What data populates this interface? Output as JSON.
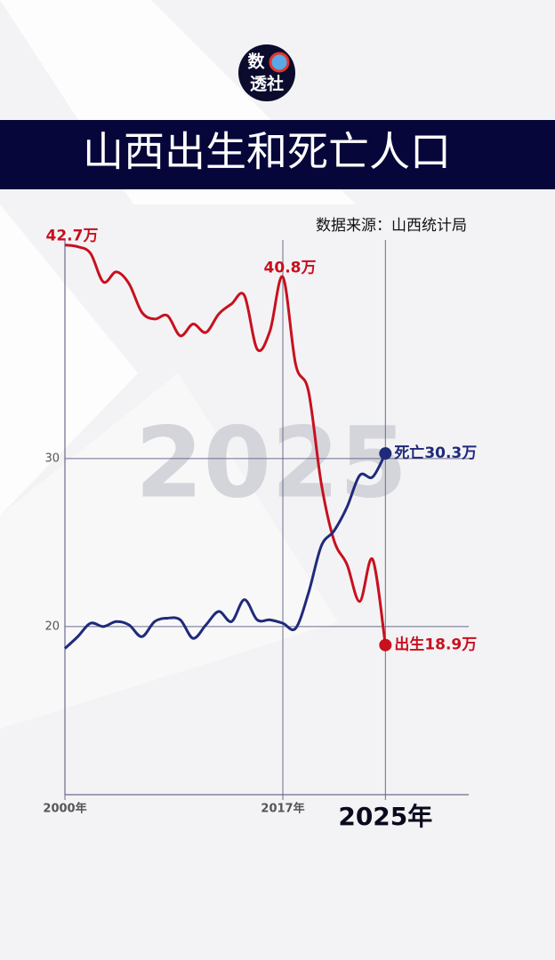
{
  "logo": {
    "line1": "数",
    "line2": "透社"
  },
  "chart_data": {
    "type": "line",
    "title": "山西出生和死亡人口",
    "source": "数据来源：山西统计局",
    "watermark": "2025",
    "x": [
      2000,
      2001,
      2002,
      2003,
      2004,
      2005,
      2006,
      2007,
      2008,
      2009,
      2010,
      2011,
      2012,
      2013,
      2014,
      2015,
      2016,
      2017,
      2018,
      2019,
      2020,
      2021,
      2022,
      2023,
      2024,
      2025
    ],
    "series": [
      {
        "name": "出生",
        "color": "#c8101e",
        "values": [
          42.7,
          42.6,
          42.2,
          40.5,
          41.1,
          40.4,
          38.7,
          38.3,
          38.5,
          37.3,
          38.0,
          37.5,
          38.6,
          39.2,
          39.7,
          36.5,
          37.6,
          40.8,
          35.6,
          34.0,
          28.5,
          25.1,
          23.7,
          21.5,
          24.0,
          18.9
        ],
        "value_labels": [
          "42.7万",
          null,
          null,
          null,
          null,
          null,
          null,
          null,
          null,
          null,
          null,
          null,
          null,
          null,
          null,
          null,
          null,
          "40.8万",
          null,
          null,
          null,
          null,
          null,
          null,
          null,
          "18.9万"
        ]
      },
      {
        "name": "死亡",
        "color": "#1f2a7a",
        "values": [
          18.7,
          19.4,
          20.2,
          20.0,
          20.3,
          20.1,
          19.4,
          20.3,
          20.5,
          20.4,
          19.3,
          20.1,
          20.9,
          20.3,
          21.6,
          20.4,
          20.4,
          20.2,
          19.9,
          22.0,
          24.8,
          25.7,
          27.1,
          29.0,
          28.9,
          30.3
        ],
        "value_labels": [
          null,
          null,
          null,
          null,
          null,
          null,
          null,
          null,
          null,
          null,
          null,
          null,
          null,
          null,
          null,
          null,
          null,
          null,
          null,
          null,
          null,
          null,
          null,
          null,
          null,
          "30.3万"
        ]
      }
    ],
    "xlim": [
      2000,
      2031.5
    ],
    "ylim": [
      10,
      43
    ],
    "xticks": [
      {
        "value": 2000,
        "label": "2000年"
      },
      {
        "value": 2017,
        "label": "2017年"
      },
      {
        "value": 2025,
        "label": "2025年"
      }
    ],
    "yticks": [
      20,
      30
    ],
    "grid": true
  }
}
